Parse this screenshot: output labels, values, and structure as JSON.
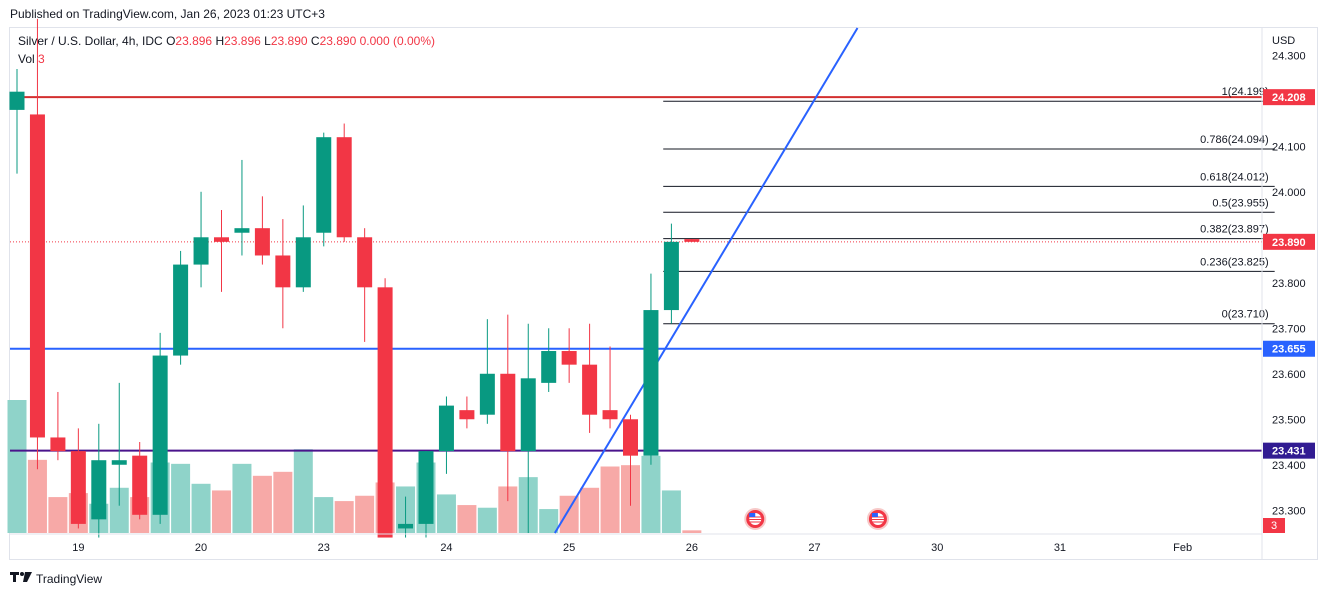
{
  "header": {
    "published": "Published on TradingView.com, Jan 26, 2023 01:23 UTC+3"
  },
  "legend": {
    "symbol": "Silver / U.S. Dollar, 4h, IDC",
    "o_label": "O",
    "o_value": "23.896",
    "h_label": "H",
    "h_value": "23.896",
    "l_label": "L",
    "l_value": "23.890",
    "c_label": "C",
    "c_value": "23.890",
    "change": "0.000 (0.00%)",
    "vol_label": "Vol",
    "vol_value": "3"
  },
  "footer": {
    "brand": "TradingView",
    "logo": "tv-logo-icon"
  },
  "colors": {
    "up": "#089981",
    "down": "#f23645",
    "up_vol": "#8fd3c9",
    "down_vol": "#f7a9a7",
    "red_line": "#d32f2f",
    "blue_line": "#2962ff",
    "purple_line": "#4a148c"
  },
  "chart_data": {
    "type": "candlestick",
    "currency": "USD",
    "y_axis": {
      "min": 23.25,
      "max": 24.36,
      "ticks": [
        "24.300",
        "24.100",
        "24.000",
        "23.800",
        "23.700",
        "23.600",
        "23.500",
        "23.400",
        "23.300"
      ]
    },
    "x_ticks": [
      {
        "label": "19",
        "bar": 3
      },
      {
        "label": "20",
        "bar": 9
      },
      {
        "label": "23",
        "bar": 15
      },
      {
        "label": "24",
        "bar": 21
      },
      {
        "label": "25",
        "bar": 27
      },
      {
        "label": "26",
        "bar": 33
      },
      {
        "label": "27",
        "bar": 39
      },
      {
        "label": "30",
        "bar": 45
      },
      {
        "label": "31",
        "bar": 51
      },
      {
        "label": "Feb",
        "bar": 57
      }
    ],
    "candles": [
      {
        "o": 24.18,
        "h": 24.27,
        "l": 24.04,
        "c": 24.22
      },
      {
        "o": 24.17,
        "h": 24.38,
        "l": 23.39,
        "c": 23.46
      },
      {
        "o": 23.46,
        "h": 23.56,
        "l": 23.41,
        "c": 23.43
      },
      {
        "o": 23.43,
        "h": 23.48,
        "l": 23.26,
        "c": 23.27
      },
      {
        "o": 23.28,
        "h": 23.49,
        "l": 23.24,
        "c": 23.41
      },
      {
        "o": 23.4,
        "h": 23.58,
        "l": 23.31,
        "c": 23.41
      },
      {
        "o": 23.42,
        "h": 23.45,
        "l": 23.28,
        "c": 23.29
      },
      {
        "o": 23.29,
        "h": 23.69,
        "l": 23.27,
        "c": 23.64
      },
      {
        "o": 23.64,
        "h": 23.87,
        "l": 23.62,
        "c": 23.84
      },
      {
        "o": 23.84,
        "h": 24.0,
        "l": 23.79,
        "c": 23.9
      },
      {
        "o": 23.9,
        "h": 23.96,
        "l": 23.78,
        "c": 23.89
      },
      {
        "o": 23.91,
        "h": 24.07,
        "l": 23.86,
        "c": 23.92
      },
      {
        "o": 23.92,
        "h": 23.99,
        "l": 23.84,
        "c": 23.86
      },
      {
        "o": 23.86,
        "h": 23.94,
        "l": 23.7,
        "c": 23.79
      },
      {
        "o": 23.79,
        "h": 23.97,
        "l": 23.78,
        "c": 23.9
      },
      {
        "o": 23.91,
        "h": 24.13,
        "l": 23.88,
        "c": 24.12
      },
      {
        "o": 24.12,
        "h": 24.15,
        "l": 23.89,
        "c": 23.9
      },
      {
        "o": 23.9,
        "h": 23.92,
        "l": 23.67,
        "c": 23.79
      },
      {
        "o": 23.79,
        "h": 23.81,
        "l": 23.24,
        "c": 23.24
      },
      {
        "o": 23.26,
        "h": 23.33,
        "l": 23.24,
        "c": 23.27
      },
      {
        "o": 23.27,
        "h": 23.43,
        "l": 23.24,
        "c": 23.43
      },
      {
        "o": 23.43,
        "h": 23.55,
        "l": 23.38,
        "c": 23.53
      },
      {
        "o": 23.52,
        "h": 23.55,
        "l": 23.48,
        "c": 23.5
      },
      {
        "o": 23.51,
        "h": 23.72,
        "l": 23.49,
        "c": 23.6
      },
      {
        "o": 23.6,
        "h": 23.73,
        "l": 23.32,
        "c": 23.43
      },
      {
        "o": 23.43,
        "h": 23.71,
        "l": 23.25,
        "c": 23.59
      },
      {
        "o": 23.58,
        "h": 23.7,
        "l": 23.56,
        "c": 23.65
      },
      {
        "o": 23.65,
        "h": 23.7,
        "l": 23.58,
        "c": 23.62
      },
      {
        "o": 23.62,
        "h": 23.71,
        "l": 23.47,
        "c": 23.51
      },
      {
        "o": 23.52,
        "h": 23.66,
        "l": 23.48,
        "c": 23.5
      },
      {
        "o": 23.5,
        "h": 23.51,
        "l": 23.31,
        "c": 23.42
      },
      {
        "o": 23.42,
        "h": 23.82,
        "l": 23.4,
        "c": 23.74
      },
      {
        "o": 23.74,
        "h": 23.93,
        "l": 23.71,
        "c": 23.89
      },
      {
        "o": 23.896,
        "h": 23.896,
        "l": 23.89,
        "c": 23.89
      }
    ],
    "volume": {
      "max": 100,
      "values": [
        100,
        55,
        27,
        30,
        22,
        34,
        27,
        53,
        52,
        37,
        32,
        52,
        43,
        46,
        63,
        27,
        24,
        28,
        38,
        35,
        53,
        29,
        21,
        19,
        35,
        42,
        18,
        28,
        34,
        50,
        51,
        58,
        32,
        2
      ]
    },
    "horizontal_lines": [
      {
        "price": 24.208,
        "label": "24.208",
        "color": "#d32f2f",
        "badge": "#f23645"
      },
      {
        "price": 23.655,
        "label": "23.655",
        "color": "#2962ff",
        "badge": "#2962ff"
      },
      {
        "price": 23.431,
        "label": "23.431",
        "color": "#4a148c",
        "badge": "#311b92"
      }
    ],
    "last_price": {
      "price": 23.89,
      "label": "23.890"
    },
    "vol_badge": "3",
    "fibonacci": {
      "start_bar": 31.6,
      "end_bar": 61.5,
      "levels": [
        {
          "label": "1(24.199)",
          "price": 24.199
        },
        {
          "label": "0.786(24.094)",
          "price": 24.094
        },
        {
          "label": "0.618(24.012)",
          "price": 24.012
        },
        {
          "label": "0.5(23.955)",
          "price": 23.955
        },
        {
          "label": "0.382(23.897)",
          "price": 23.897
        },
        {
          "label": "0.236(23.825)",
          "price": 23.825
        },
        {
          "label": "0(23.710)",
          "price": 23.71
        }
      ]
    },
    "trendline": {
      "from": {
        "bar": 26.3,
        "price": 23.25
      },
      "to": {
        "bar": 41.1,
        "price": 24.36
      }
    },
    "event_icons": [
      {
        "bar": 36.1,
        "name": "us-flag-icon"
      },
      {
        "bar": 42.1,
        "name": "us-flag-icon"
      }
    ]
  }
}
